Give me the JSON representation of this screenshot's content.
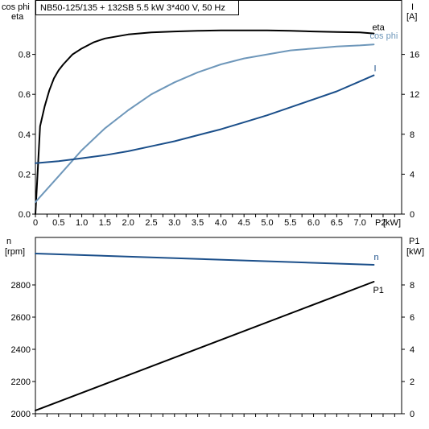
{
  "chart_data": [
    {
      "type": "line",
      "title": "NB50-125/135 + 132SB   5.5 kW   3*400 V, 50 Hz",
      "xlabel": "P2 [kW]",
      "x_unit": "[kW]",
      "x_name": "P2",
      "xlim": [
        0,
        7.9
      ],
      "xticks": [
        "0",
        "0.5",
        "1.0",
        "1.5",
        "2.0",
        "2.5",
        "3.0",
        "3.5",
        "4.0",
        "4.5",
        "5.0",
        "5.5",
        "6.0",
        "6.5",
        "7.0"
      ],
      "left_axis": {
        "label_line1": "cos phi",
        "label_line2": "eta",
        "lim": [
          0,
          1.0
        ],
        "ticks": [
          "0.0",
          "0.2",
          "0.4",
          "0.6",
          "0.8"
        ]
      },
      "right_axis": {
        "label_line1": "I",
        "label_line2": "[A]",
        "lim": [
          0,
          20
        ],
        "ticks": [
          "0",
          "4",
          "8",
          "12",
          "16"
        ]
      },
      "grid": false,
      "series": [
        {
          "name": "eta",
          "axis": "left",
          "color": "#000000",
          "x": [
            0.0,
            0.1,
            0.2,
            0.3,
            0.4,
            0.5,
            0.6,
            0.8,
            1.0,
            1.25,
            1.5,
            2.0,
            2.5,
            3.0,
            3.5,
            4.0,
            4.5,
            5.0,
            5.5,
            6.0,
            6.5,
            7.0,
            7.3
          ],
          "y": [
            0.0,
            0.44,
            0.54,
            0.62,
            0.68,
            0.72,
            0.75,
            0.8,
            0.83,
            0.86,
            0.88,
            0.9,
            0.91,
            0.915,
            0.918,
            0.92,
            0.92,
            0.92,
            0.918,
            0.915,
            0.912,
            0.91,
            0.905
          ]
        },
        {
          "name": "cos phi",
          "axis": "left",
          "color": "#6e97ba",
          "x": [
            0.0,
            0.5,
            1.0,
            1.5,
            2.0,
            2.5,
            3.0,
            3.5,
            4.0,
            4.5,
            5.0,
            5.5,
            6.0,
            6.5,
            7.0,
            7.3
          ],
          "y": [
            0.06,
            0.19,
            0.32,
            0.43,
            0.52,
            0.6,
            0.66,
            0.71,
            0.75,
            0.78,
            0.8,
            0.82,
            0.83,
            0.84,
            0.845,
            0.85
          ]
        },
        {
          "name": "I",
          "axis": "right",
          "color": "#1b4f8a",
          "x": [
            0.0,
            0.5,
            1.0,
            1.5,
            2.0,
            2.5,
            3.0,
            3.5,
            4.0,
            4.5,
            5.0,
            5.5,
            6.0,
            6.5,
            7.0,
            7.3
          ],
          "y": [
            5.1,
            5.3,
            5.6,
            5.9,
            6.3,
            6.8,
            7.3,
            7.9,
            8.5,
            9.2,
            9.9,
            10.7,
            11.5,
            12.3,
            13.3,
            13.9
          ]
        }
      ],
      "legend_placement": "labels at right end of curves"
    },
    {
      "type": "line",
      "xlim": [
        0,
        7.9
      ],
      "left_axis": {
        "label_line1": "n",
        "label_line2": "[rpm]",
        "lim": [
          2000,
          3000
        ],
        "ticks": [
          "2000",
          "2200",
          "2400",
          "2600",
          "2800"
        ]
      },
      "right_axis": {
        "label_line1": "P1",
        "label_line2": "[kW]",
        "lim": [
          0,
          10
        ],
        "ticks": [
          "0",
          "2",
          "4",
          "6",
          "8"
        ]
      },
      "grid": false,
      "series": [
        {
          "name": "n",
          "axis": "left",
          "color": "#1b4f8a",
          "x": [
            0.0,
            7.3
          ],
          "y": [
            2995,
            2925
          ]
        },
        {
          "name": "P1",
          "axis": "right",
          "color": "#000000",
          "x": [
            0.0,
            7.3
          ],
          "y": [
            0.2,
            8.2
          ]
        }
      ],
      "legend_placement": "labels at right end of curves"
    }
  ]
}
